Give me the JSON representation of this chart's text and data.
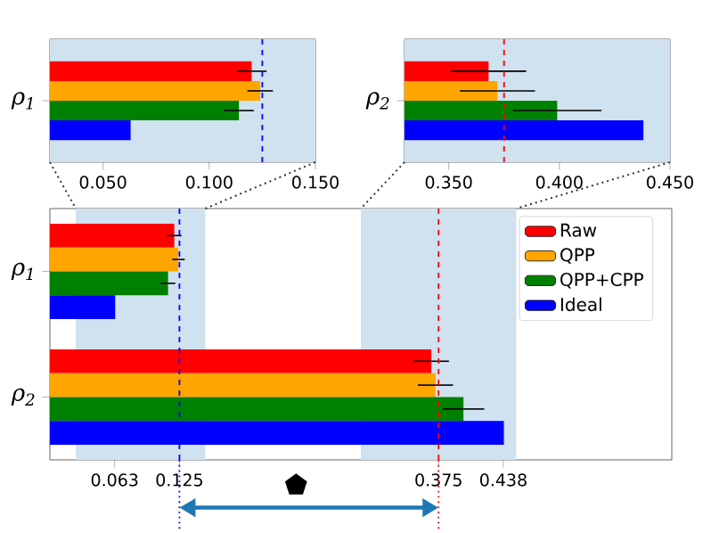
{
  "chart_data": [
    {
      "type": "bar",
      "orientation": "horizontal",
      "categories": [
        "ρ$_{1}$",
        "ρ$_{2}$"
      ],
      "series": [
        {
          "name": "Raw",
          "color": "#ff0000",
          "values": [
            0.12,
            0.368
          ],
          "errors": [
            0.007,
            0.017
          ]
        },
        {
          "name": "QPP",
          "color": "#ffa500",
          "values": [
            0.124,
            0.372
          ],
          "errors": [
            0.006,
            0.017
          ]
        },
        {
          "name": "QPP+CPP",
          "color": "#008000",
          "values": [
            0.114,
            0.399
          ],
          "errors": [
            0.007,
            0.02
          ]
        },
        {
          "name": "Ideal",
          "color": "#0000ff",
          "values": [
            0.063,
            0.438
          ]
        }
      ],
      "xlim": [
        0,
        0.6
      ],
      "xticks": [
        {
          "value": 0.0625,
          "label": "0.063"
        },
        0.125,
        0.375,
        {
          "value": 0.4375,
          "label": "0.438"
        }
      ],
      "ref_lines": [
        {
          "axis": "x",
          "value": 0.125,
          "color": "#0000ff",
          "line_style": "dashed"
        },
        {
          "axis": "x",
          "value": 0.375,
          "color": "#ff0000",
          "line_style": "dashed"
        }
      ],
      "bands": [
        {
          "axis": "x",
          "from": 0.025,
          "to": 0.15,
          "color": "#d0e1ef"
        },
        {
          "axis": "x",
          "from": 0.3,
          "to": 0.45,
          "color": "#d0e1ef"
        }
      ],
      "legend": "top right"
    },
    {
      "type": "bar",
      "orientation": "horizontal",
      "categories": [
        "ρ$_{1}$"
      ],
      "series": [
        {
          "color": "#ff0000",
          "values": [
            0.12
          ],
          "errors": [
            0.007
          ]
        },
        {
          "color": "#ffa500",
          "values": [
            0.124
          ],
          "errors": [
            0.006
          ]
        },
        {
          "color": "#008000",
          "values": [
            0.114
          ],
          "errors": [
            0.007
          ]
        },
        {
          "color": "#0000ff",
          "values": [
            0.063
          ]
        }
      ],
      "xlim": [
        0.025,
        0.15
      ],
      "xticks": [
        {
          "value": 0.05,
          "label": "0.050"
        },
        {
          "value": 0.1,
          "label": "0.100"
        },
        {
          "value": 0.15,
          "label": "0.150"
        }
      ],
      "ref_lines": [
        {
          "axis": "x",
          "value": 0.125,
          "color": "#0000ff",
          "line_style": "dashed"
        }
      ],
      "bands": [
        {
          "axis": "x",
          "from": 0.025,
          "to": 0.15,
          "color": "#d0e1ef"
        }
      ]
    },
    {
      "type": "bar",
      "orientation": "horizontal",
      "categories": [
        "ρ$_{2}$"
      ],
      "series": [
        {
          "color": "#ff0000",
          "values": [
            0.368
          ],
          "errors": [
            0.017
          ]
        },
        {
          "color": "#ffa500",
          "values": [
            0.372
          ],
          "errors": [
            0.017
          ]
        },
        {
          "color": "#008000",
          "values": [
            0.399
          ],
          "errors": [
            0.02
          ]
        },
        {
          "color": "#0000ff",
          "values": [
            0.438
          ]
        }
      ],
      "xlim": [
        0.33,
        0.45
      ],
      "xticks": [
        {
          "value": 0.35,
          "label": "0.350"
        },
        {
          "value": 0.4,
          "label": "0.400"
        },
        {
          "value": 0.45,
          "label": "0.450"
        }
      ],
      "ref_lines": [
        {
          "axis": "x",
          "value": 0.375,
          "color": "#ff0000",
          "line_style": "dashed"
        }
      ],
      "bands": [
        {
          "axis": "x",
          "from": 0.33,
          "to": 0.45,
          "color": "#d0e1ef"
        }
      ]
    }
  ]
}
